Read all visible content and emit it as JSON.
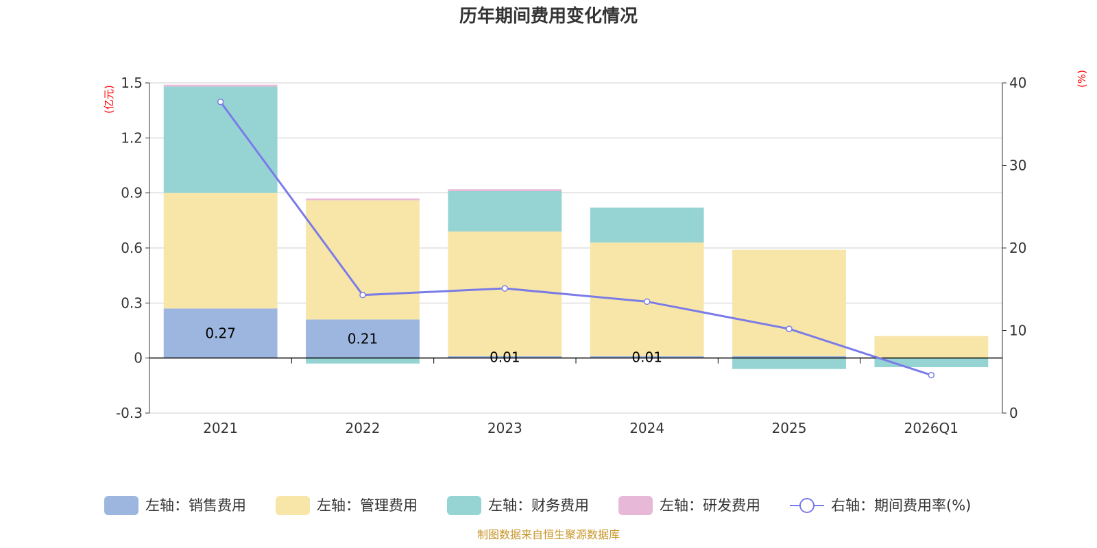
{
  "chart_data": {
    "type": "bar",
    "stacked": true,
    "title": "历年期间费用变化情况",
    "categories": [
      "2021",
      "2022",
      "2023",
      "2024",
      "2025",
      "2026Q1"
    ],
    "left_axis": {
      "unit": "(亿元)",
      "min": -0.3,
      "max": 1.5,
      "ticks": [
        -0.3,
        0,
        0.3,
        0.6,
        0.9,
        1.2,
        1.5
      ],
      "tick_labels": [
        "-0.3",
        "0",
        "0.3",
        "0.6",
        "0.9",
        "1.2",
        "1.5"
      ]
    },
    "right_axis": {
      "unit": "(%)",
      "min": 0,
      "max": 40,
      "ticks": [
        0,
        10,
        20,
        30,
        40
      ],
      "tick_labels": [
        "0",
        "10",
        "20",
        "30",
        "40"
      ]
    },
    "series": [
      {
        "name": "左轴：销售费用",
        "axis": "left",
        "kind": "bar",
        "color": "#9db6e0",
        "values": [
          0.27,
          0.21,
          0.01,
          0.01,
          0.01,
          0.0
        ],
        "labels": [
          "0.27",
          "0.21",
          "0.01",
          "0.01",
          "",
          ""
        ]
      },
      {
        "name": "左轴：管理费用",
        "axis": "left",
        "kind": "bar",
        "color": "#f7e6a8",
        "values": [
          0.63,
          0.65,
          0.68,
          0.62,
          0.58,
          0.12
        ]
      },
      {
        "name": "左轴：财务费用",
        "axis": "left",
        "kind": "bar",
        "color": "#96d4d4",
        "values": [
          0.58,
          -0.03,
          0.22,
          0.19,
          -0.06,
          -0.05
        ]
      },
      {
        "name": "左轴：研发费用",
        "axis": "left",
        "kind": "bar",
        "color": "#e8b8d8",
        "values": [
          0.01,
          0.01,
          0.01,
          0.0,
          0.0,
          0.0
        ]
      },
      {
        "name": "右轴：期间费用率(%)",
        "axis": "right",
        "kind": "line",
        "color": "#7b7be8",
        "values": [
          37.7,
          14.3,
          15.1,
          13.5,
          10.2,
          4.6
        ]
      }
    ],
    "legend_position": "bottom",
    "source": "制图数据来自恒生聚源数据库"
  }
}
